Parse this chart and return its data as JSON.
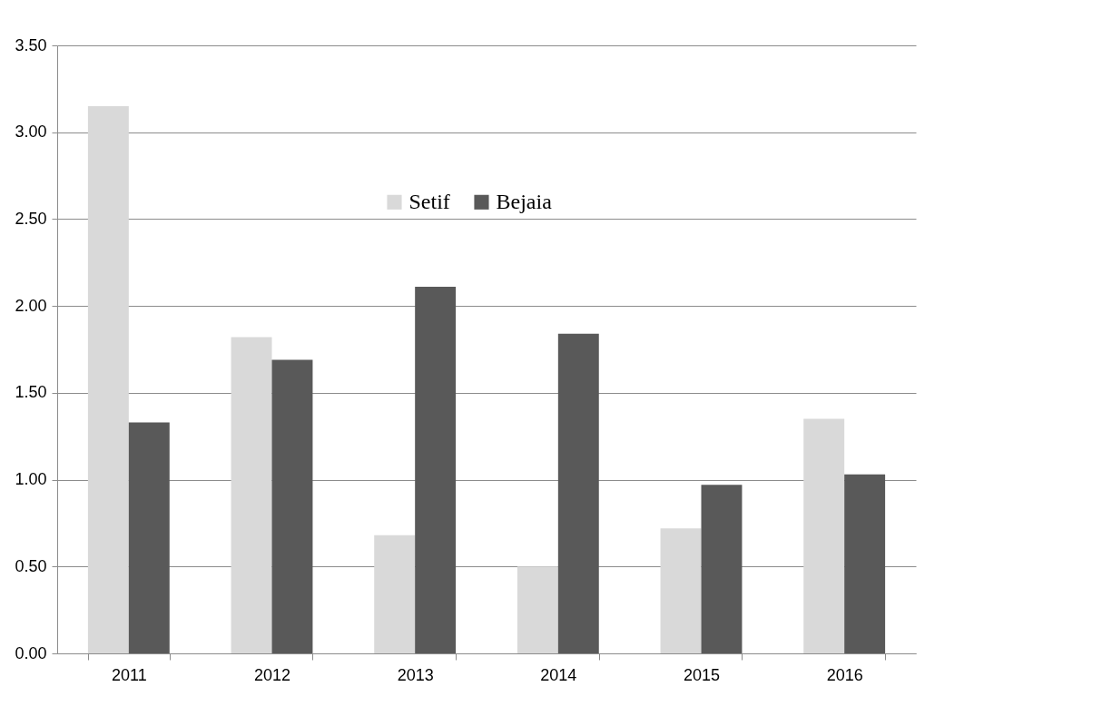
{
  "chart_data": {
    "type": "bar",
    "categories": [
      "2011",
      "2012",
      "2013",
      "2014",
      "2015",
      "2016"
    ],
    "series": [
      {
        "name": "Setif",
        "color": "#d9d9d9",
        "values": [
          3.15,
          1.82,
          0.68,
          0.5,
          0.72,
          1.35
        ]
      },
      {
        "name": "Bejaia",
        "color": "#595959",
        "values": [
          1.33,
          1.69,
          2.11,
          1.84,
          0.97,
          1.03
        ]
      }
    ],
    "ylim": [
      0,
      3.5
    ],
    "yticks": [
      {
        "value": 0,
        "label": "0.00"
      },
      {
        "value": 0.5,
        "label": "0.50"
      },
      {
        "value": 1,
        "label": "1.00"
      },
      {
        "value": 1.5,
        "label": "1.50"
      },
      {
        "value": 2,
        "label": "2.00"
      },
      {
        "value": 2.5,
        "label": "2.50"
      },
      {
        "value": 3,
        "label": "3.00"
      },
      {
        "value": 3.5,
        "label": "3.50"
      }
    ],
    "grid": "y",
    "legend": "top"
  }
}
